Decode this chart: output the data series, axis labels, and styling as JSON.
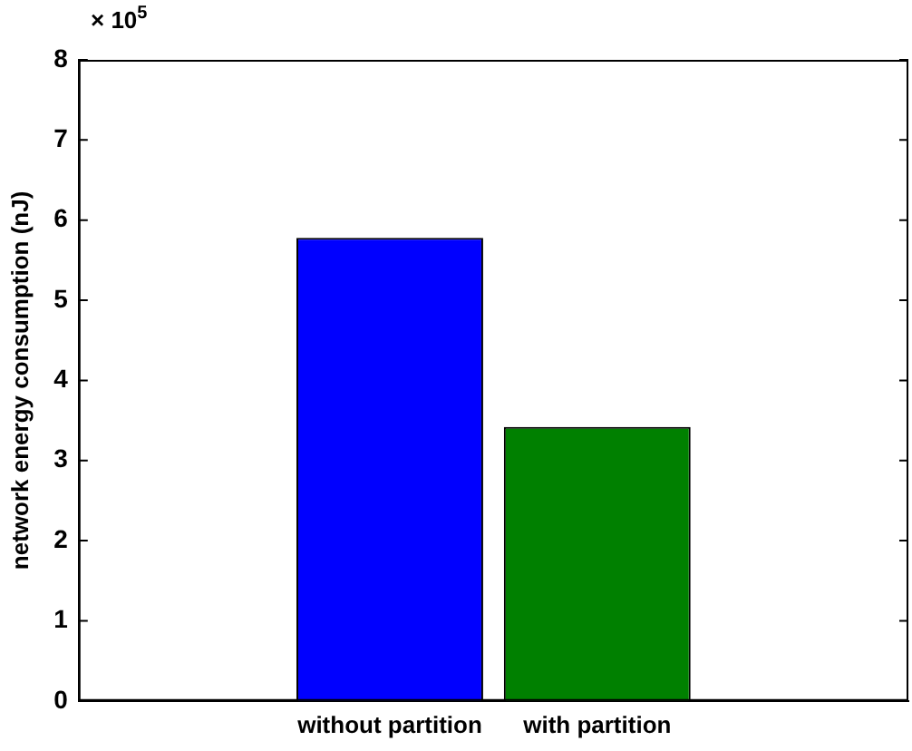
{
  "chart_data": {
    "type": "bar",
    "ylabel": "network energy consumption (nJ)",
    "annotations": [
      "× 10$^{5}$"
    ],
    "categories": [
      null,
      "without partition",
      "with partition",
      null
    ],
    "values": [
      null,
      5.78,
      3.42,
      null
    ],
    "colors": [
      "#0000ff",
      "#0000ff",
      "#008000",
      "#008000"
    ],
    "ylim": [
      0,
      8
    ],
    "yticks": [
      0,
      1,
      2,
      3,
      4,
      5,
      6,
      7,
      8
    ],
    "grid": false,
    "legend": false
  }
}
